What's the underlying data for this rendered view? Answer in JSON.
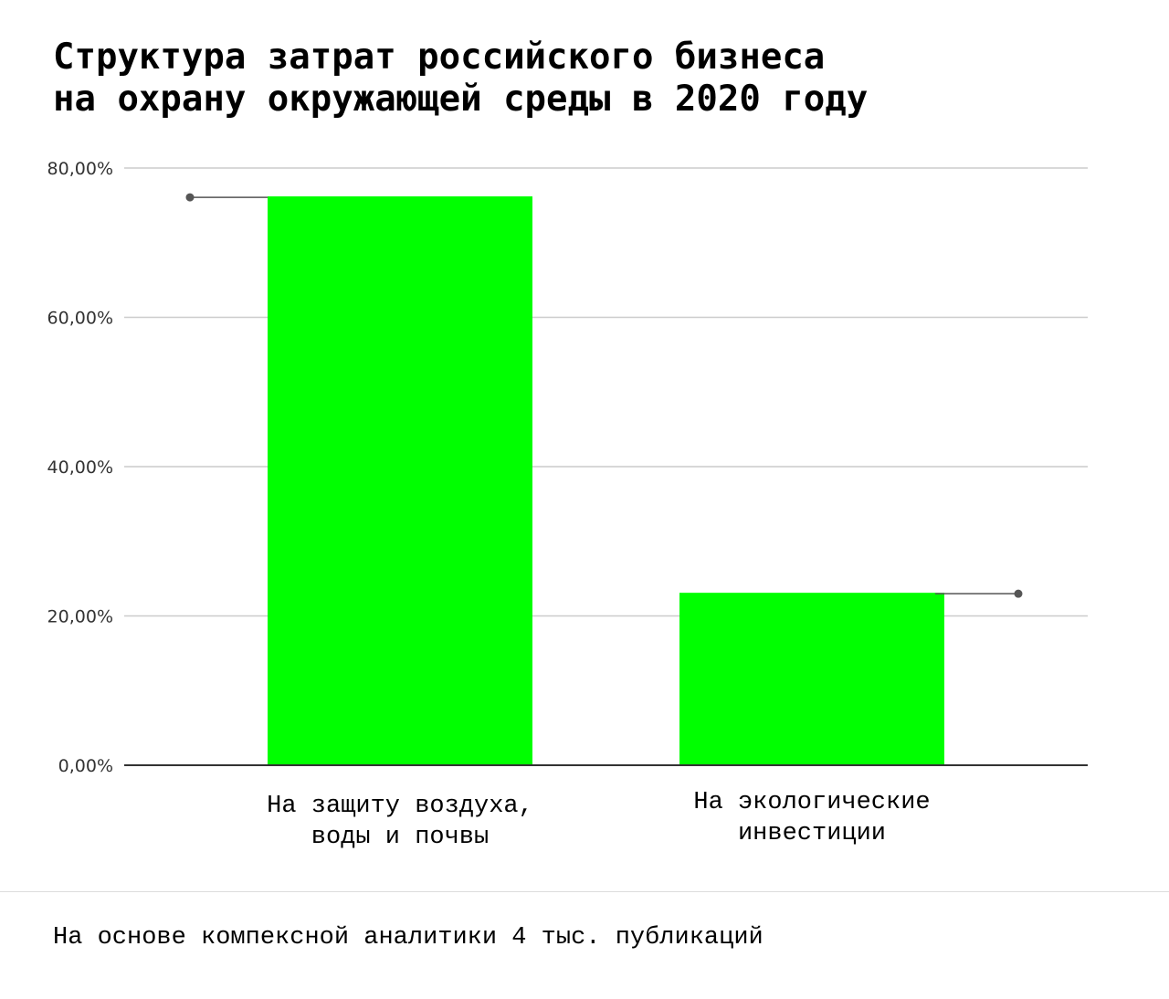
{
  "title": {
    "line1": "Структура затрат российского бизнеса",
    "line2": "на охрану окружающей среды в 2020 году"
  },
  "footer": {
    "note": "На основе компексной аналитики 4 тыс. публикаций"
  },
  "colors": {
    "bar": "#00ff00",
    "grid": "#cccccc",
    "axis": "#333333",
    "marker": "#555555"
  },
  "chart_data": {
    "type": "bar",
    "categories": [
      [
        "На защиту воздуха,",
        "воды и почвы"
      ],
      [
        "На экологические",
        "инвестиции"
      ]
    ],
    "values": [
      76.2,
      23.1
    ],
    "y_ticks": [
      "0,00%",
      "20,00%",
      "40,00%",
      "60,00%",
      "80,00%"
    ],
    "ylim": [
      0,
      80
    ],
    "grid": true,
    "legend": "none"
  }
}
